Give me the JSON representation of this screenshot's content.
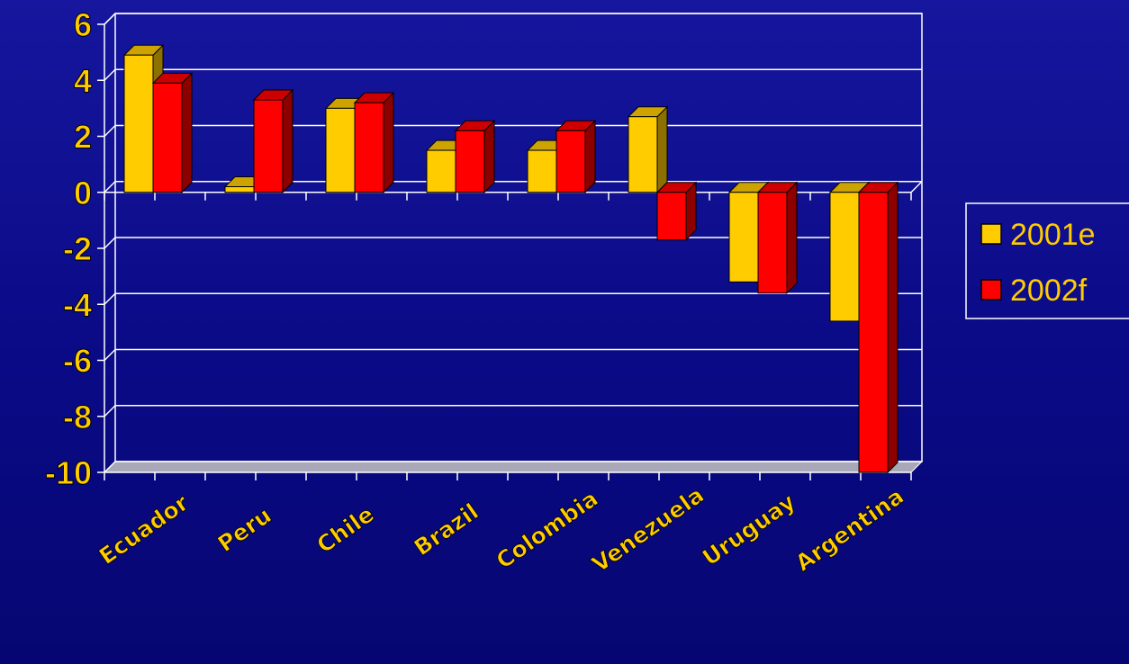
{
  "chart_data": {
    "type": "bar",
    "title": "",
    "xlabel": "",
    "ylabel": "",
    "categories": [
      "Ecuador",
      "Peru",
      "Chile",
      "Brazil",
      "Colombia",
      "Venezuela",
      "Uruguay",
      "Argentina"
    ],
    "series": [
      {
        "name": "2001e",
        "values": [
          4.9,
          0.2,
          3.0,
          1.5,
          1.5,
          2.7,
          -3.2,
          -4.6
        ]
      },
      {
        "name": "2002f",
        "values": [
          3.9,
          3.3,
          3.2,
          2.2,
          2.2,
          -1.7,
          -3.6,
          -10.0
        ]
      }
    ],
    "ylim": [
      -10,
      6
    ],
    "yticks": [
      "6",
      "4",
      "2",
      "0",
      "-2",
      "-4",
      "-6",
      "-8",
      "-10"
    ],
    "grid": true,
    "legend_position": "right",
    "style": "3d-clustered-bar"
  },
  "colors": {
    "background": "#0b0b8c",
    "series_2001e": "#ffcc00",
    "series_2002f": "#ff0000",
    "labels": "#ffcc00",
    "gridlines": "#ffffff"
  }
}
